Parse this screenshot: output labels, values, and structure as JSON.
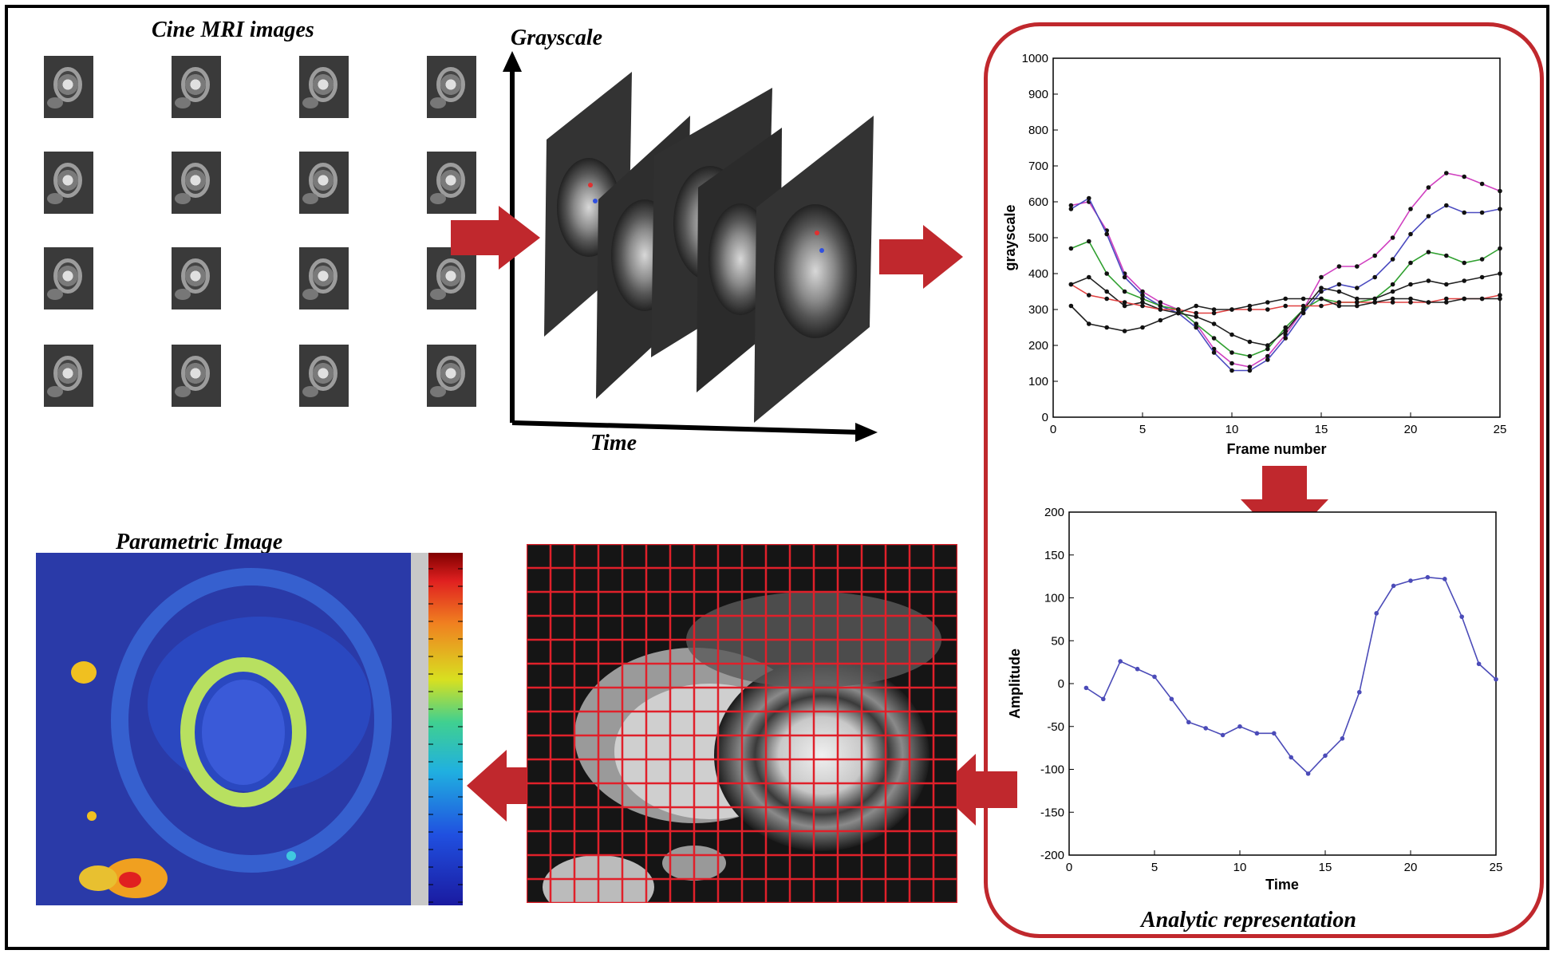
{
  "labels": {
    "cine": "Cine MRI images",
    "grayscale_axis": "Grayscale",
    "time_axis": "Time",
    "parametric": "Parametric Image",
    "analytic": "Analytic representation"
  },
  "colors": {
    "arrow": "#c0282d",
    "box_border": "#c0282d",
    "grid": "#e0202a",
    "series_blue": "#4b4bb8"
  },
  "chart_data": [
    {
      "type": "line",
      "title": "",
      "xlabel": "Frame number",
      "ylabel": "grayscale",
      "xlim": [
        0,
        25
      ],
      "ylim": [
        0,
        1000
      ],
      "xticks": [
        0,
        5,
        10,
        15,
        20,
        25
      ],
      "yticks": [
        0,
        100,
        200,
        300,
        400,
        500,
        600,
        700,
        800,
        900,
        1000
      ],
      "x": [
        1,
        2,
        3,
        4,
        5,
        6,
        7,
        8,
        9,
        10,
        11,
        12,
        13,
        14,
        15,
        16,
        17,
        18,
        19,
        20,
        21,
        22,
        23,
        24,
        25
      ],
      "series": [
        {
          "name": "magenta",
          "color": "#d040c0",
          "values": [
            590,
            600,
            520,
            400,
            350,
            320,
            300,
            260,
            190,
            150,
            140,
            170,
            230,
            300,
            390,
            420,
            420,
            450,
            500,
            580,
            640,
            680,
            670,
            650,
            630
          ]
        },
        {
          "name": "blue",
          "color": "#4b4bc0",
          "values": [
            580,
            610,
            510,
            390,
            340,
            310,
            290,
            250,
            180,
            130,
            130,
            160,
            220,
            290,
            350,
            370,
            360,
            390,
            440,
            510,
            560,
            590,
            570,
            570,
            580
          ]
        },
        {
          "name": "green",
          "color": "#30a030",
          "values": [
            470,
            490,
            400,
            350,
            330,
            310,
            300,
            260,
            220,
            180,
            170,
            190,
            250,
            300,
            330,
            320,
            320,
            330,
            370,
            430,
            460,
            450,
            430,
            440,
            470
          ]
        },
        {
          "name": "black-1",
          "color": "#222222",
          "values": [
            370,
            390,
            350,
            310,
            320,
            300,
            290,
            280,
            260,
            230,
            210,
            200,
            240,
            300,
            360,
            350,
            330,
            330,
            350,
            370,
            380,
            370,
            380,
            390,
            400
          ]
        },
        {
          "name": "red",
          "color": "#e04040",
          "values": [
            370,
            340,
            330,
            320,
            310,
            300,
            300,
            290,
            290,
            300,
            300,
            300,
            310,
            310,
            310,
            320,
            320,
            320,
            320,
            320,
            320,
            330,
            330,
            330,
            340
          ]
        },
        {
          "name": "black-2",
          "color": "#222222",
          "values": [
            310,
            260,
            250,
            240,
            250,
            270,
            290,
            310,
            300,
            300,
            310,
            320,
            330,
            330,
            330,
            310,
            310,
            320,
            330,
            330,
            320,
            320,
            330,
            330,
            330
          ]
        }
      ]
    },
    {
      "type": "line",
      "title": "",
      "xlabel": "Time",
      "ylabel": "Amplitude",
      "xlim": [
        0,
        25
      ],
      "ylim": [
        -200,
        200
      ],
      "xticks": [
        0,
        5,
        10,
        15,
        20,
        25
      ],
      "yticks": [
        -200,
        -150,
        -100,
        -50,
        0,
        50,
        100,
        150,
        200
      ],
      "x": [
        1,
        2,
        3,
        4,
        5,
        6,
        7,
        8,
        9,
        10,
        11,
        12,
        13,
        14,
        15,
        16,
        17,
        18,
        19,
        20,
        21,
        22,
        23,
        24,
        25
      ],
      "series": [
        {
          "name": "amplitude",
          "color": "#4b4bb8",
          "values": [
            -5,
            -18,
            26,
            17,
            8,
            -18,
            -45,
            -52,
            -60,
            -50,
            -58,
            -58,
            -86,
            -105,
            -84,
            -64,
            -10,
            82,
            114,
            120,
            124,
            122,
            78,
            23,
            5
          ]
        }
      ]
    }
  ]
}
